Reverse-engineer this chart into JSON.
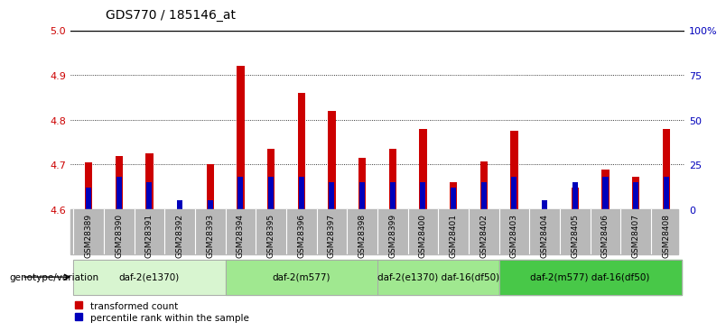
{
  "title": "GDS770 / 185146_at",
  "samples": [
    "GSM28389",
    "GSM28390",
    "GSM28391",
    "GSM28392",
    "GSM28393",
    "GSM28394",
    "GSM28395",
    "GSM28396",
    "GSM28397",
    "GSM28398",
    "GSM28399",
    "GSM28400",
    "GSM28401",
    "GSM28402",
    "GSM28403",
    "GSM28404",
    "GSM28405",
    "GSM28406",
    "GSM28407",
    "GSM28408"
  ],
  "transformed_count": [
    4.705,
    4.72,
    4.725,
    4.6,
    4.7,
    4.92,
    4.735,
    4.86,
    4.82,
    4.715,
    4.735,
    4.78,
    4.66,
    4.708,
    4.775,
    4.6,
    4.648,
    4.688,
    4.672,
    4.78
  ],
  "percentile_rank_pct": [
    12,
    18,
    15,
    5,
    5,
    18,
    18,
    18,
    15,
    15,
    15,
    15,
    12,
    15,
    18,
    5,
    15,
    18,
    15,
    18
  ],
  "ymin": 4.6,
  "ymax": 5.0,
  "y2min": 0,
  "y2max": 100,
  "yticks": [
    4.6,
    4.7,
    4.8,
    4.9,
    5.0
  ],
  "y2ticks": [
    0,
    25,
    50,
    75,
    100
  ],
  "y2ticklabels": [
    "0",
    "25",
    "50",
    "75",
    "100%"
  ],
  "bar_color_red": "#cc0000",
  "bar_color_blue": "#0000bb",
  "bar_width": 0.25,
  "blue_bar_width": 0.18,
  "group_defs": [
    {
      "label": "daf-2(e1370)",
      "start": 0,
      "end": 4,
      "color": "#d8f5d0"
    },
    {
      "label": "daf-2(m577)",
      "start": 5,
      "end": 9,
      "color": "#a0e890"
    },
    {
      "label": "daf-2(e1370) daf-16(df50)",
      "start": 10,
      "end": 13,
      "color": "#a0e890"
    },
    {
      "label": "daf-2(m577) daf-16(df50)",
      "start": 14,
      "end": 19,
      "color": "#48c848"
    }
  ],
  "legend_red_label": "transformed count",
  "legend_blue_label": "percentile rank within the sample",
  "genotype_label": "genotype/variation",
  "left_axis_color": "#cc0000",
  "right_axis_color": "#0000bb",
  "sample_label_bg": "#b8b8b8"
}
